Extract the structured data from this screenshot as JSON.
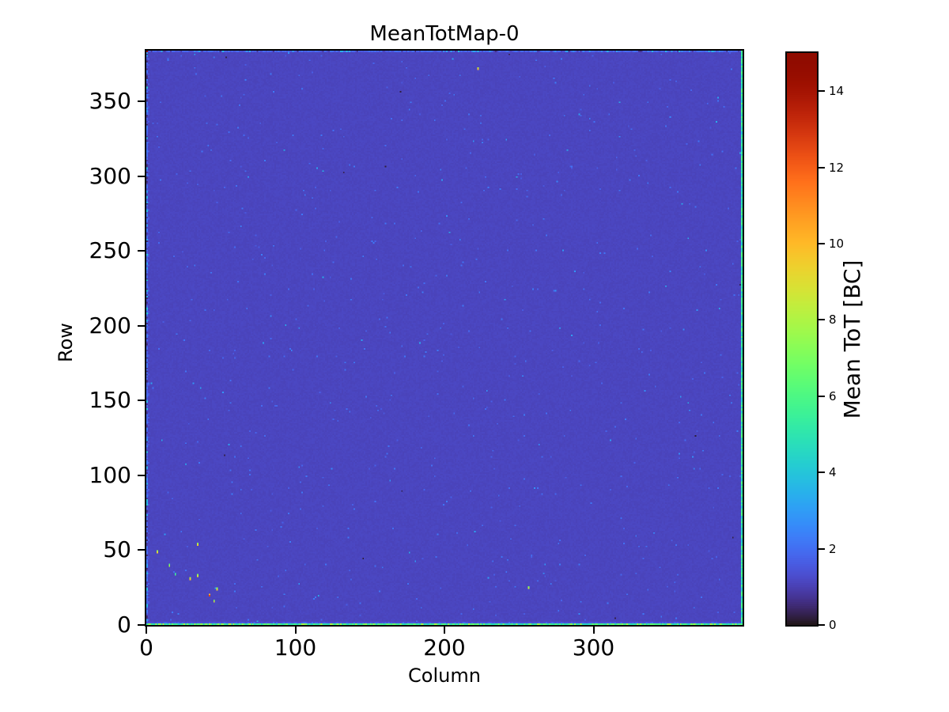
{
  "title": "MeanTotMap-0",
  "axes": {
    "xlabel": "Column",
    "ylabel": "Row",
    "xticks": [
      0,
      100,
      200,
      300
    ],
    "yticks": [
      0,
      50,
      100,
      150,
      200,
      250,
      300,
      350
    ]
  },
  "colorbar": {
    "label": "Mean ToT [BC]",
    "ticks": [
      0,
      2,
      4,
      6,
      8,
      10,
      12,
      14
    ],
    "min": 0,
    "max": 15,
    "colormap": "turbo"
  },
  "chart_data": {
    "type": "heatmap",
    "title": "MeanTotMap-0",
    "xlabel": "Column",
    "ylabel": "Row",
    "value_label": "Mean ToT [BC]",
    "x_range": [
      0,
      400
    ],
    "y_range": [
      0,
      384
    ],
    "value_range": [
      0,
      15
    ],
    "colormap": "turbo",
    "background_value": 1.1,
    "background_noise": 0.12,
    "edges": {
      "bottom_row": {
        "row": 0,
        "value_range": [
          4.2,
          8.3
        ]
      },
      "row_above_bottom": {
        "row": 1,
        "value_range": [
          1.25,
          2.0
        ]
      },
      "right_col": {
        "col": 399,
        "value_range": [
          4.0,
          6.2
        ]
      },
      "top_row": {
        "row": 383,
        "value_range": [
          0.6,
          3.9
        ]
      },
      "left_col": {
        "col": 0,
        "value_range": [
          0.5,
          4.2
        ]
      }
    },
    "hot_pixels": [
      {
        "col": 222,
        "row": 371,
        "value": 10.0
      },
      {
        "col": 7,
        "row": 48,
        "value": 9.5
      },
      {
        "col": 34,
        "row": 53,
        "value": 9.5
      },
      {
        "col": 15,
        "row": 39,
        "value": 8.0
      },
      {
        "col": 19,
        "row": 33,
        "value": 6.0
      },
      {
        "col": 29,
        "row": 30,
        "value": 10.0
      },
      {
        "col": 34,
        "row": 32,
        "value": 9.0
      },
      {
        "col": 47,
        "row": 23,
        "value": 9.5
      },
      {
        "col": 42,
        "row": 19,
        "value": 12.5
      },
      {
        "col": 45,
        "row": 15,
        "value": 9.0
      },
      {
        "col": 256,
        "row": 24,
        "value": 8.5
      }
    ],
    "spot_pixels": [
      {
        "col": 145,
        "row": 44,
        "value": 0.15
      },
      {
        "col": 368,
        "row": 126,
        "value": 0.15
      },
      {
        "col": 0,
        "row": 383,
        "value": 14.5
      },
      {
        "col": 267,
        "row": 40,
        "value": 2.9
      },
      {
        "col": 266,
        "row": 34,
        "value": 2.7
      },
      {
        "col": 364,
        "row": 143,
        "value": 2.6
      },
      {
        "col": 366,
        "row": 112,
        "value": 2.7
      },
      {
        "col": 12,
        "row": 60,
        "value": 3.0
      },
      {
        "col": 225,
        "row": 322,
        "value": 2.5
      },
      {
        "col": 83,
        "row": 206,
        "value": 2.5
      },
      {
        "col": 97,
        "row": 183,
        "value": 2.5
      },
      {
        "col": 351,
        "row": 236,
        "value": 2.4
      },
      {
        "col": 210,
        "row": 257,
        "value": 2.4
      }
    ]
  }
}
